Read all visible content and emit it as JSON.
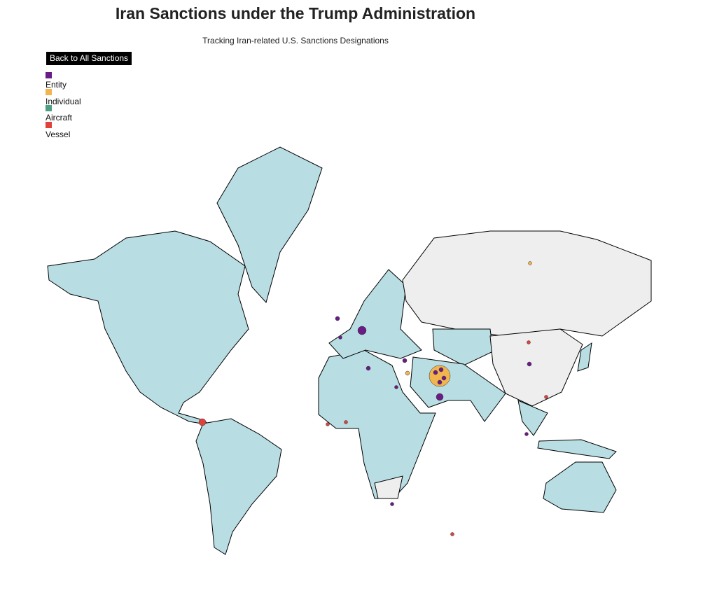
{
  "header": {
    "title": "Iran Sanctions under the Trump Administration",
    "subtitle": "Tracking Iran-related U.S. Sanctions Designations"
  },
  "button": {
    "label": "Back to All Sanctions"
  },
  "legend": {
    "items": [
      {
        "label": "Entity",
        "color": "#6a1b86"
      },
      {
        "label": "Individual",
        "color": "#f2b44e"
      },
      {
        "label": "Aircraft",
        "color": "#4e9e85"
      },
      {
        "label": "Vessel",
        "color": "#e0413a"
      }
    ]
  }
}
